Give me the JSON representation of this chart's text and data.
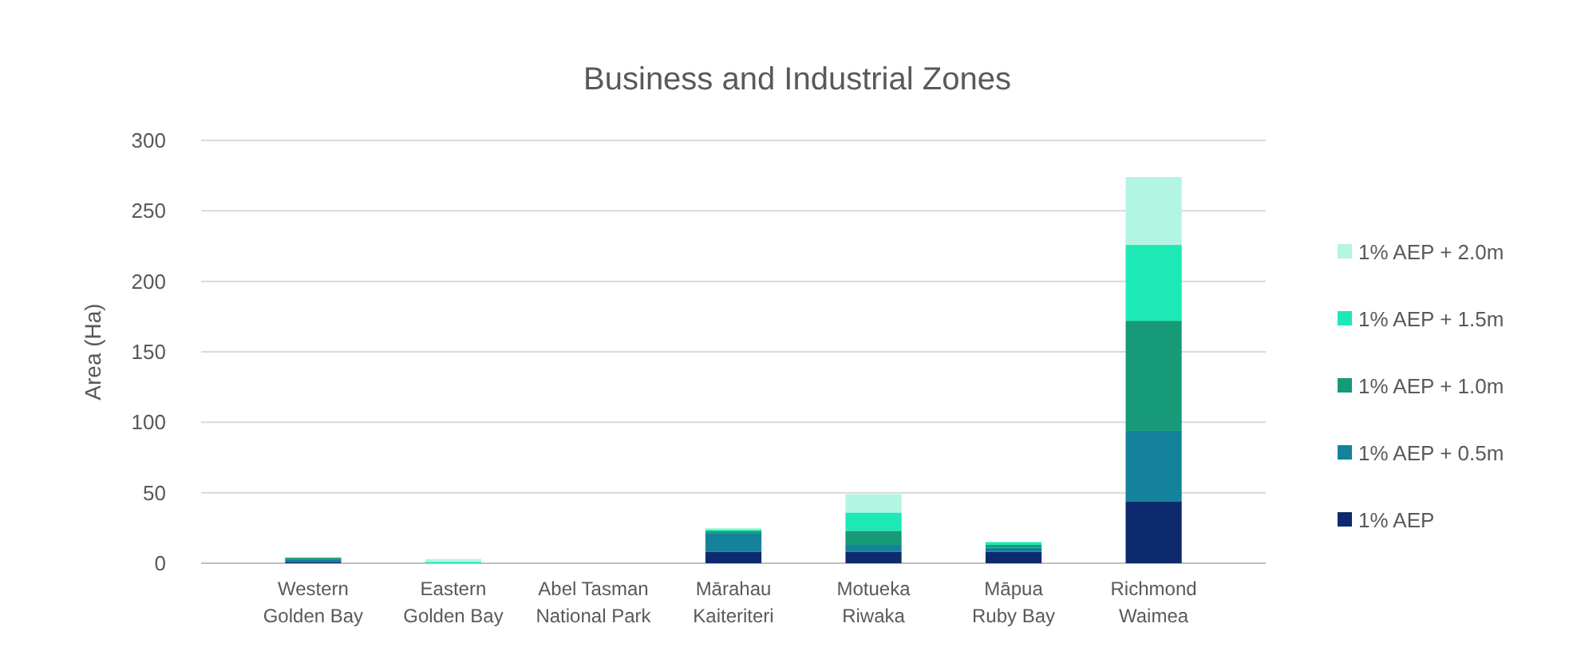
{
  "chart_data": {
    "type": "bar",
    "title": "Business and Industrial Zones",
    "ylabel": "Area (Ha)",
    "stacked": true,
    "grid": "y",
    "legend": "right",
    "categories": [
      "Western\nGolden Bay",
      "Eastern\nGolden Bay",
      "Abel Tasman\nNational Park",
      "Mārahau\nKaiteriteri",
      "Motueka\nRiwaka",
      "Māpua\nRuby Bay",
      "Richmond\nWaimea"
    ],
    "ylim": [
      0,
      300
    ],
    "yticks": [
      0,
      50,
      100,
      150,
      200,
      250,
      300
    ],
    "series": [
      {
        "name": "1% AEP",
        "color": "#0d2a6e",
        "values": [
          1,
          0,
          0,
          8,
          8,
          8,
          44
        ]
      },
      {
        "name": "1% AEP + 0.5m",
        "color": "#13829a",
        "values": [
          2,
          0,
          0,
          13,
          5,
          3,
          50
        ]
      },
      {
        "name": "1% AEP + 1.0m",
        "color": "#169a78",
        "values": [
          1,
          0,
          0,
          2,
          10,
          2,
          78
        ]
      },
      {
        "name": "1% AEP + 1.5m",
        "color": "#1de9b6",
        "values": [
          0,
          1,
          0,
          1,
          13,
          2,
          54
        ]
      },
      {
        "name": "1% AEP + 2.0m",
        "color": "#b3f5e3",
        "values": [
          0,
          2,
          0,
          1,
          13,
          0,
          48
        ]
      }
    ]
  }
}
